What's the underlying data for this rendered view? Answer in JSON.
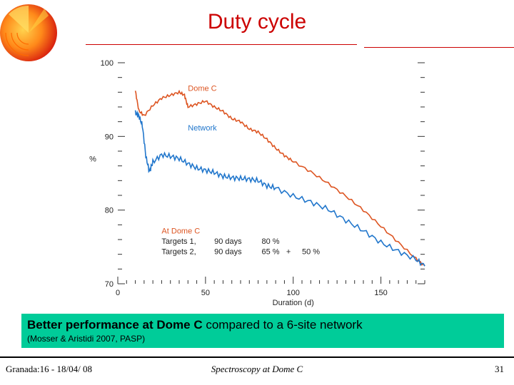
{
  "slide": {
    "title": "Duty cycle",
    "banner": {
      "bold": "Better performance at Dome C",
      "rest": " compared to a 6-site network",
      "reference": "(Mosser & Aristidi 2007, PASP)"
    },
    "footer": {
      "left": "Granada:16 - 18/04/ 08",
      "center": "Spectroscopy at Dome C",
      "right": "31"
    }
  },
  "chart_data": {
    "type": "line",
    "title": "",
    "xlabel": "Duration (d)",
    "ylabel": "%",
    "xlim": [
      0,
      175
    ],
    "ylim": [
      70,
      100
    ],
    "x_ticks": [
      "0",
      "50",
      "100",
      "150"
    ],
    "y_ticks": [
      "70",
      "80",
      "90",
      "100"
    ],
    "grid": false,
    "series": [
      {
        "name": "Dome C",
        "color": "#dd5522",
        "x": [
          10,
          12,
          15,
          20,
          25,
          30,
          35,
          38,
          40,
          45,
          50,
          55,
          60,
          65,
          70,
          75,
          80,
          85,
          90,
          95,
          100,
          110,
          120,
          130,
          140,
          150,
          160,
          170,
          175
        ],
        "y": [
          96.2,
          93.5,
          92.8,
          94.2,
          95.2,
          95.6,
          96.0,
          95.6,
          94.0,
          94.4,
          94.8,
          94.0,
          93.4,
          92.4,
          92.0,
          91.0,
          90.6,
          89.6,
          88.4,
          87.4,
          86.6,
          85.2,
          83.6,
          81.9,
          80.0,
          77.8,
          75.6,
          73.4,
          72.4
        ]
      },
      {
        "name": "Network",
        "color": "#2277cc",
        "x": [
          10,
          12,
          14,
          16,
          18,
          20,
          25,
          30,
          35,
          40,
          45,
          50,
          55,
          60,
          65,
          70,
          75,
          80,
          85,
          90,
          100,
          110,
          120,
          130,
          140,
          150,
          160,
          170,
          175
        ],
        "y": [
          93.2,
          92.8,
          91.5,
          87.3,
          85.2,
          86.5,
          87.5,
          87.3,
          87.0,
          86.3,
          85.7,
          85.4,
          85.1,
          84.6,
          84.4,
          84.3,
          84.2,
          84.0,
          83.3,
          83.0,
          81.9,
          81.1,
          80.1,
          78.6,
          77.2,
          75.6,
          74.4,
          73.3,
          72.4
        ]
      }
    ],
    "annotations": {
      "heading": "At Dome C",
      "row1": {
        "label": "Targets 1,",
        "days": "90 days",
        "value": "80 %"
      },
      "row2": {
        "label": "Targets 2,",
        "days": "90 days",
        "value": "65 %",
        "plus": "+",
        "extra": "50 %"
      }
    }
  }
}
